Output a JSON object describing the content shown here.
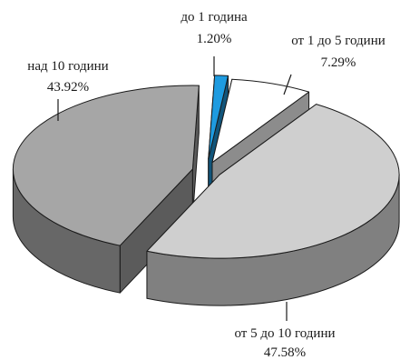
{
  "chart_data": {
    "type": "pie",
    "title": "",
    "slices": [
      {
        "label": "до 1 година",
        "value_label": "1.20%",
        "value": 1.2,
        "color": "#1e9be0"
      },
      {
        "label": "от 1 до 5 години",
        "value_label": "7.29%",
        "value": 7.29,
        "color": "#ffffff"
      },
      {
        "label": "от 5 до 10 години",
        "value_label": "47.58%",
        "value": 47.58,
        "color": "#cfcfcf"
      },
      {
        "label": "над 10 години",
        "value_label": "43.92%",
        "value": 43.92,
        "color": "#a6a6a6"
      }
    ],
    "style": "3d-exploded"
  }
}
